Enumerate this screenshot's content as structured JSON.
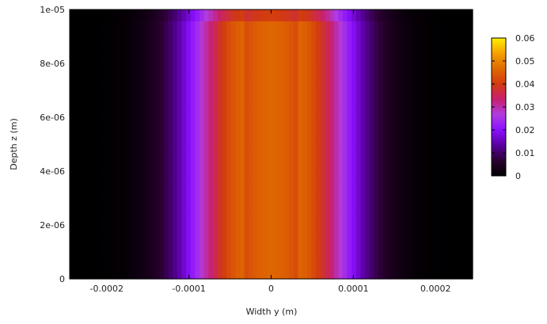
{
  "chart_data": {
    "type": "heatmap",
    "title": "",
    "xlabel": "Width y (m)",
    "ylabel": "Depth z (m)",
    "xlim": [
      -0.000245,
      0.000245
    ],
    "ylim": [
      0,
      1e-05
    ],
    "x_ticks": [
      {
        "value": -0.0002,
        "label": "-0.0002"
      },
      {
        "value": -0.0001,
        "label": "-0.0001"
      },
      {
        "value": 0,
        "label": "0"
      },
      {
        "value": 0.0001,
        "label": "0.0001"
      },
      {
        "value": 0.0002,
        "label": "0.0002"
      }
    ],
    "y_ticks": [
      {
        "value": 0,
        "label": "0"
      },
      {
        "value": 2e-06,
        "label": "2e-06"
      },
      {
        "value": 4e-06,
        "label": "4e-06"
      },
      {
        "value": 6e-06,
        "label": "6e-06"
      },
      {
        "value": 8e-06,
        "label": "8e-06"
      },
      {
        "value": 1e-05,
        "label": "1e-05"
      }
    ],
    "colorbar": {
      "range": [
        0,
        0.06
      ],
      "ticks": [
        {
          "value": 0,
          "label": "0"
        },
        {
          "value": 0.01,
          "label": "0.01"
        },
        {
          "value": 0.02,
          "label": "0.02"
        },
        {
          "value": 0.03,
          "label": "0.03"
        },
        {
          "value": 0.04,
          "label": "0.04"
        },
        {
          "value": 0.05,
          "label": "0.05"
        },
        {
          "value": 0.06,
          "label": "0.06"
        }
      ],
      "palette": [
        "#000000",
        "#2a0030",
        "#5a00a0",
        "#8a10ff",
        "#b03ce0",
        "#c8206f",
        "#d23a10",
        "#e06a00",
        "#f5a000",
        "#fff000"
      ]
    },
    "profile": {
      "description_free": true,
      "peak_value": 0.046,
      "sigma": 9e-05,
      "flat_halfwidth": 3e-05,
      "top_falloff_start": 9.6e-06
    },
    "grid": false
  }
}
